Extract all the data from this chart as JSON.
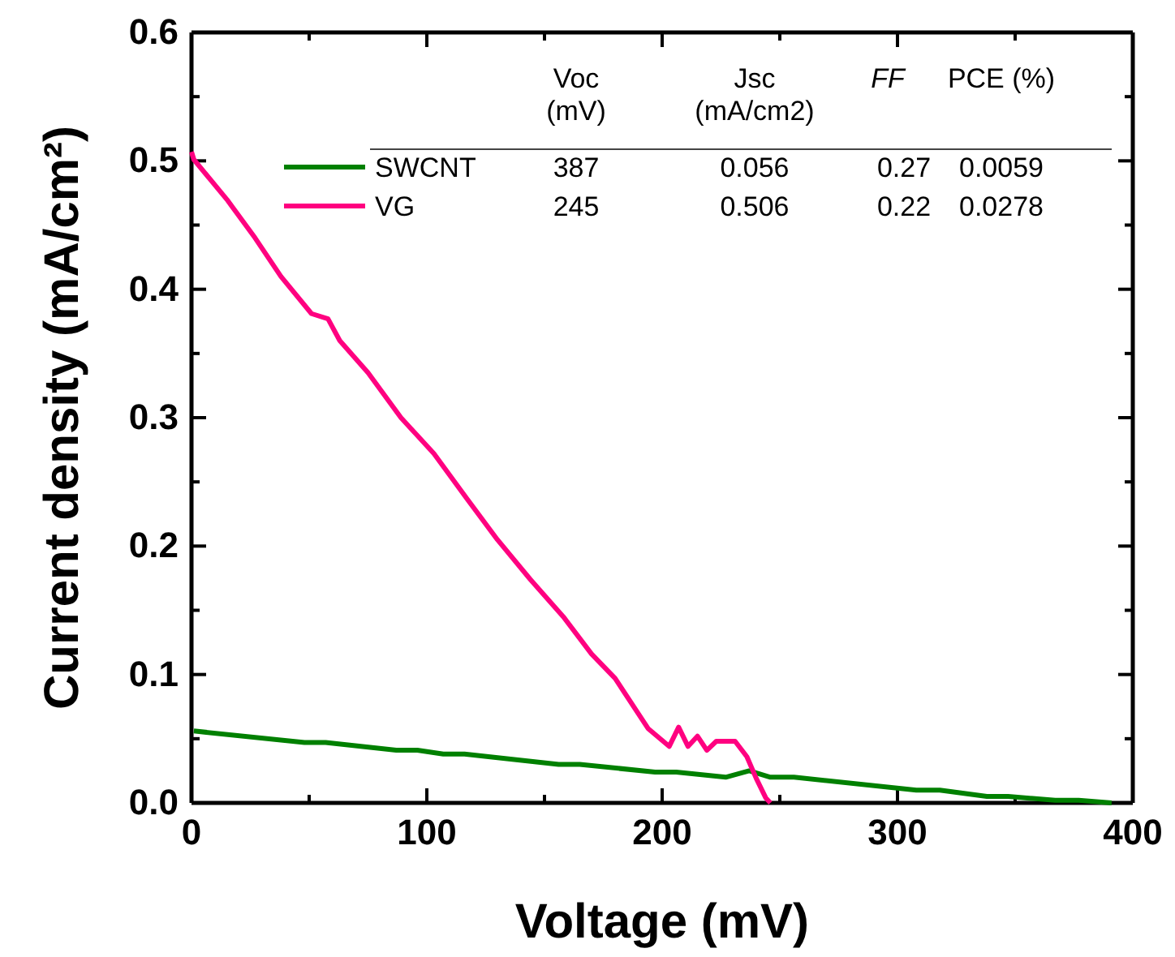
{
  "chart_data": {
    "type": "line",
    "xlabel": "Voltage (mV)",
    "ylabel": "Current density (mA/cm²)",
    "xlim": [
      0,
      400
    ],
    "ylim": [
      0,
      0.6
    ],
    "xticks": [
      0,
      {
        "value": 50,
        "label": null
      },
      100,
      {
        "value": 150,
        "label": null
      },
      200,
      {
        "value": 250,
        "label": null
      },
      300,
      {
        "value": 350,
        "label": null
      },
      400
    ],
    "yticks": [
      {
        "value": 0,
        "label": "0.0"
      },
      {
        "value": 0.05,
        "label": null
      },
      0.1,
      {
        "value": 0.15,
        "label": null
      },
      0.2,
      {
        "value": 0.25,
        "label": null
      },
      0.3,
      {
        "value": 0.35,
        "label": null
      },
      0.4,
      {
        "value": 0.45,
        "label": null
      },
      0.5,
      {
        "value": 0.55,
        "label": null
      },
      0.6
    ],
    "legend": "top left",
    "grid": false,
    "line_style": "solid",
    "marker": "none",
    "annotations": [
      "Voc\n(mV)",
      "Jsc\n(mA/cm2)",
      "FF",
      "PCE (%)",
      "387",
      "0.056",
      "0.27",
      "0.0059",
      "245",
      "0.506",
      "0.22",
      "0.0278"
    ],
    "series": [
      {
        "name": "SWCNT",
        "color": "#008000",
        "x": [
          1,
          48,
          57,
          87,
          96,
          107,
          116,
          156,
          165,
          197,
          206,
          227,
          237,
          246,
          256,
          308,
          318,
          338,
          347,
          367,
          377,
          391
        ],
        "values": [
          0.056,
          0.047,
          0.047,
          0.041,
          0.041,
          0.038,
          0.038,
          0.03,
          0.03,
          0.024,
          0.024,
          0.02,
          0.025,
          0.02,
          0.02,
          0.01,
          0.01,
          0.005,
          0.005,
          0.002,
          0.002,
          0
        ]
      },
      {
        "name": "VG",
        "color": "#ff0080",
        "x": [
          0,
          1,
          15,
          27,
          38,
          51,
          58,
          63,
          75,
          89,
          103,
          117,
          130,
          144,
          158,
          170,
          180,
          194,
          203,
          207,
          211,
          215,
          219,
          223,
          231,
          236,
          240,
          244,
          246
        ],
        "values": [
          0.507,
          0.501,
          0.47,
          0.44,
          0.41,
          0.381,
          0.377,
          0.36,
          0.335,
          0.3,
          0.272,
          0.237,
          0.205,
          0.174,
          0.145,
          0.116,
          0.097,
          0.058,
          0.044,
          0.059,
          0.044,
          0.052,
          0.041,
          0.048,
          0.048,
          0.036,
          0.019,
          0.004,
          0
        ]
      }
    ]
  }
}
